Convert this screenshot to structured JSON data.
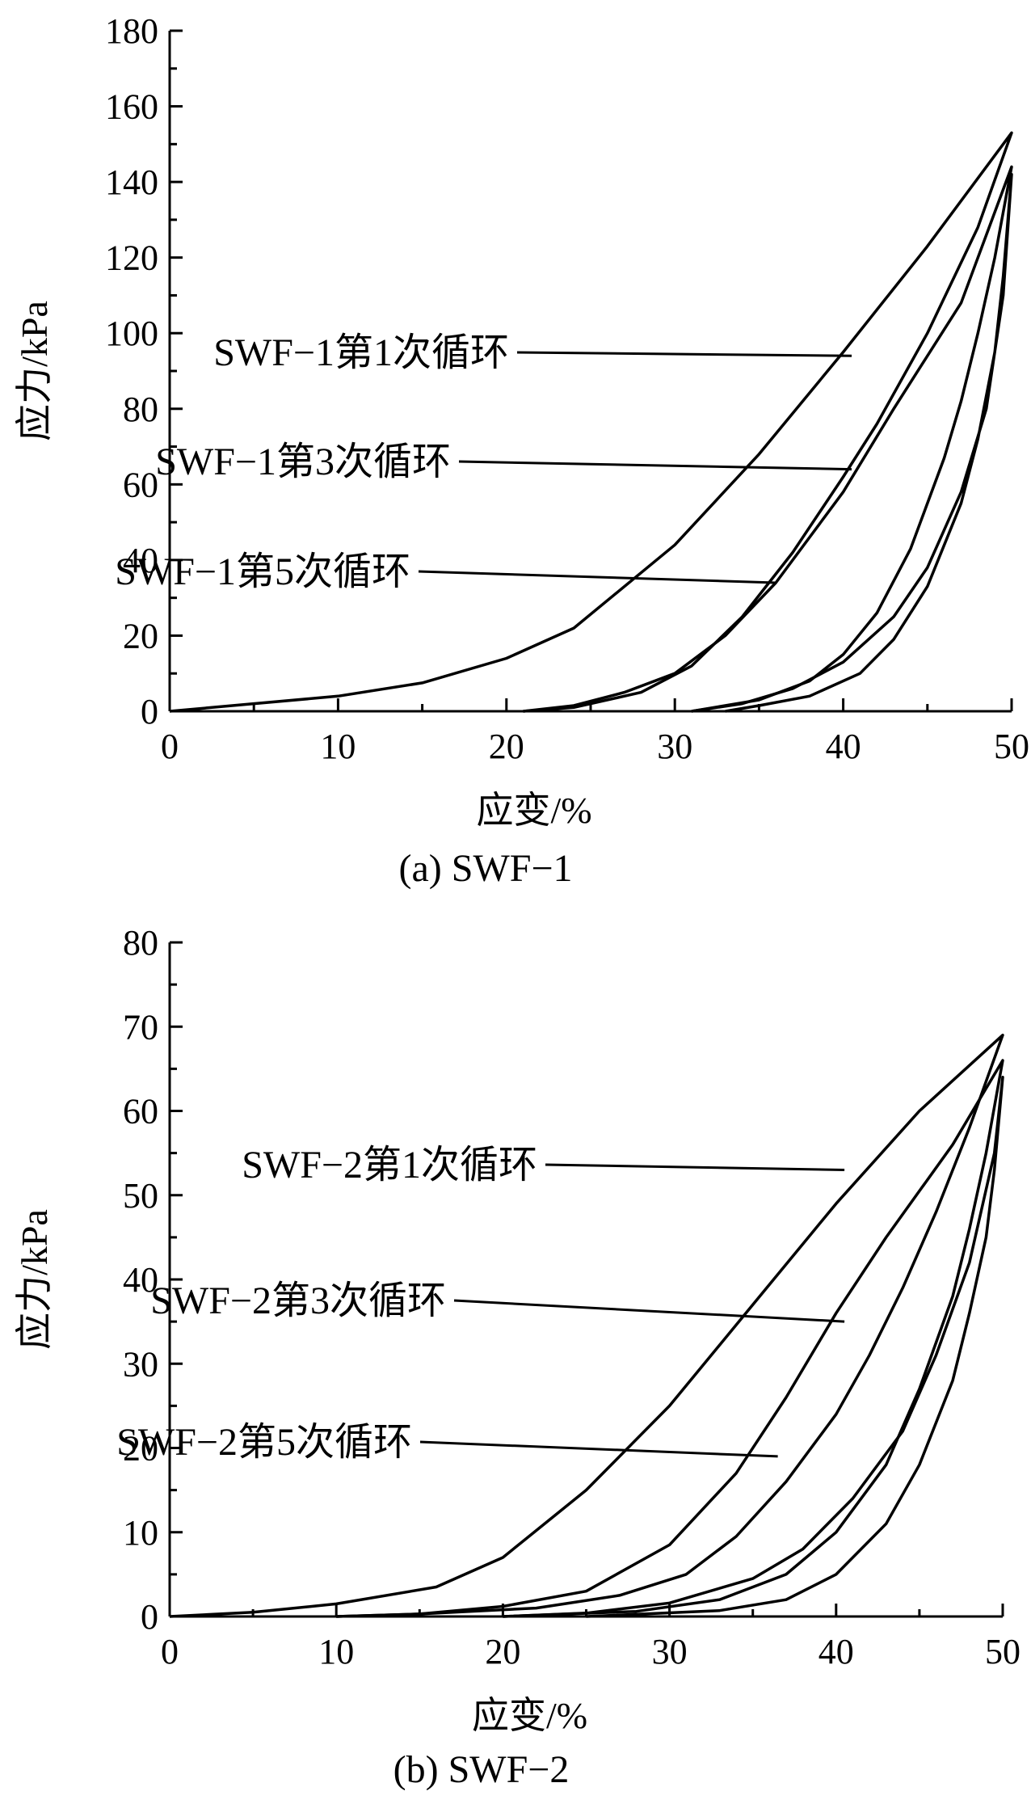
{
  "chart_data": [
    {
      "type": "line",
      "caption": "(a) SWF−1",
      "xlabel": "应变/%",
      "ylabel": "应力/kPa",
      "xlim": [
        0,
        50
      ],
      "ylim": [
        0,
        180
      ],
      "xticks": [
        0,
        10,
        20,
        30,
        40,
        50
      ],
      "yticks": [
        0,
        20,
        40,
        60,
        80,
        100,
        120,
        140,
        160,
        180
      ],
      "line_color": "#000000",
      "series": [
        {
          "name": "SWF−1第1次循环",
          "loading": [
            [
              0,
              0
            ],
            [
              10,
              4
            ],
            [
              15,
              7.5
            ],
            [
              20,
              14
            ],
            [
              24,
              22
            ],
            [
              30,
              44
            ],
            [
              35,
              68
            ],
            [
              40,
              95
            ],
            [
              45,
              123
            ],
            [
              50,
              153
            ]
          ],
          "unloading": [
            [
              50,
              153
            ],
            [
              48,
              128
            ],
            [
              45,
              100
            ],
            [
              42,
              76
            ],
            [
              40,
              62
            ],
            [
              37,
              42
            ],
            [
              34,
              25
            ],
            [
              31,
              12
            ],
            [
              28,
              5
            ],
            [
              24,
              1
            ],
            [
              21,
              0
            ]
          ]
        },
        {
          "name": "SWF−1第3次循环",
          "loading": [
            [
              21,
              0
            ],
            [
              24,
              1.5
            ],
            [
              27,
              5
            ],
            [
              30,
              10
            ],
            [
              33,
              20
            ],
            [
              36,
              34
            ],
            [
              40,
              58
            ],
            [
              43,
              80
            ],
            [
              47,
              108
            ],
            [
              50,
              144
            ]
          ],
          "unloading": [
            [
              50,
              144
            ],
            [
              49,
              120
            ],
            [
              48,
              100
            ],
            [
              47,
              82
            ],
            [
              46,
              67
            ],
            [
              44,
              43
            ],
            [
              42,
              26
            ],
            [
              40,
              15
            ],
            [
              38,
              8
            ],
            [
              35,
              3
            ],
            [
              31,
              0
            ]
          ]
        },
        {
          "name": "SWF−1第5次循环",
          "loading": [
            [
              31,
              0
            ],
            [
              34,
              2
            ],
            [
              37,
              6
            ],
            [
              40,
              13
            ],
            [
              43,
              25
            ],
            [
              45,
              38
            ],
            [
              47,
              58
            ],
            [
              48.5,
              80
            ],
            [
              49.5,
              110
            ],
            [
              50,
              142
            ]
          ],
          "unloading": [
            [
              50,
              142
            ],
            [
              49.5,
              115
            ],
            [
              49,
              95
            ],
            [
              48,
              72
            ],
            [
              47,
              55
            ],
            [
              45,
              33
            ],
            [
              43,
              19
            ],
            [
              41,
              10
            ],
            [
              38,
              4
            ],
            [
              35,
              1.5
            ],
            [
              33,
              0
            ]
          ]
        }
      ],
      "annotations": [
        {
          "text": "SWF−1第1次循环",
          "target": [
            40.5,
            94
          ]
        },
        {
          "text": "SWF−1第3次循环",
          "target": [
            40.5,
            64
          ]
        },
        {
          "text": "SWF−1第5次循环",
          "target": [
            36,
            34
          ]
        }
      ]
    },
    {
      "type": "line",
      "caption": "(b) SWF−2",
      "xlabel": "应变/%",
      "ylabel": "应力/kPa",
      "xlim": [
        0,
        50
      ],
      "ylim": [
        0,
        80
      ],
      "xticks": [
        0,
        10,
        20,
        30,
        40,
        50
      ],
      "yticks": [
        0,
        10,
        20,
        30,
        40,
        50,
        60,
        70,
        80
      ],
      "line_color": "#000000",
      "series": [
        {
          "name": "SWF−2第1次循环",
          "loading": [
            [
              0,
              0
            ],
            [
              5,
              0.5
            ],
            [
              10,
              1.5
            ],
            [
              16,
              3.5
            ],
            [
              20,
              7
            ],
            [
              25,
              15
            ],
            [
              30,
              25
            ],
            [
              35,
              37
            ],
            [
              40,
              49
            ],
            [
              45,
              60
            ],
            [
              50,
              69
            ]
          ],
          "unloading": [
            [
              50,
              69
            ],
            [
              48,
              58
            ],
            [
              46,
              48
            ],
            [
              44,
              39
            ],
            [
              42,
              31
            ],
            [
              40,
              24
            ],
            [
              37,
              16
            ],
            [
              34,
              9.5
            ],
            [
              31,
              5
            ],
            [
              27,
              2.5
            ],
            [
              22,
              1
            ],
            [
              15,
              0.3
            ],
            [
              10,
              0
            ]
          ]
        },
        {
          "name": "SWF−2第3次循环",
          "loading": [
            [
              10,
              0
            ],
            [
              15,
              0.3
            ],
            [
              20,
              1.2
            ],
            [
              25,
              3
            ],
            [
              30,
              8.5
            ],
            [
              34,
              17
            ],
            [
              37,
              26
            ],
            [
              40,
              36
            ],
            [
              43,
              45
            ],
            [
              47,
              56
            ],
            [
              50,
              66
            ]
          ],
          "unloading": [
            [
              50,
              66
            ],
            [
              49,
              55
            ],
            [
              48,
              46
            ],
            [
              47,
              38
            ],
            [
              45,
              27
            ],
            [
              43,
              18
            ],
            [
              40,
              10
            ],
            [
              37,
              5
            ],
            [
              33,
              2
            ],
            [
              28,
              0.6
            ],
            [
              20,
              0
            ]
          ]
        },
        {
          "name": "SWF−2第5次循环",
          "loading": [
            [
              20,
              0
            ],
            [
              25,
              0.4
            ],
            [
              30,
              1.6
            ],
            [
              35,
              4.5
            ],
            [
              38,
              8
            ],
            [
              41,
              14
            ],
            [
              44,
              22
            ],
            [
              46,
              31
            ],
            [
              48,
              42
            ],
            [
              49.5,
              55
            ],
            [
              50,
              64
            ]
          ],
          "unloading": [
            [
              50,
              64
            ],
            [
              49.5,
              53
            ],
            [
              49,
              45
            ],
            [
              48,
              36
            ],
            [
              47,
              28
            ],
            [
              45,
              18
            ],
            [
              43,
              11
            ],
            [
              40,
              5
            ],
            [
              37,
              2
            ],
            [
              33,
              0.7
            ],
            [
              25,
              0
            ]
          ]
        }
      ],
      "annotations": [
        {
          "text": "SWF−2第1次循环",
          "target": [
            40.5,
            53
          ]
        },
        {
          "text": "SWF−2第3次循环",
          "target": [
            40.5,
            35
          ]
        },
        {
          "text": "SWF−2第5次循环",
          "target": [
            36.5,
            19
          ]
        }
      ]
    }
  ]
}
